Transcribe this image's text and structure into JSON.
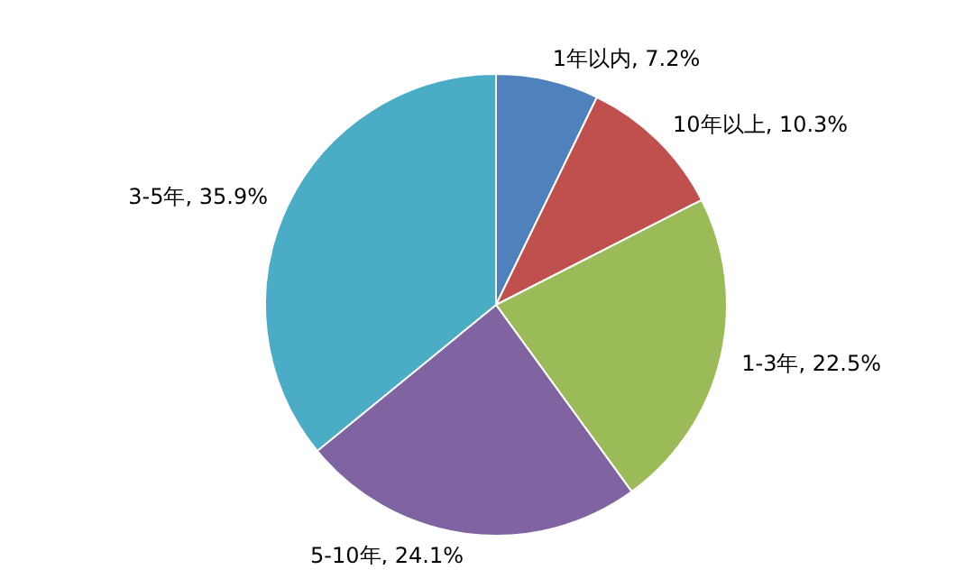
{
  "chart_data": {
    "type": "pie",
    "categories": [
      "1年以内",
      "10年以上",
      "1-3年",
      "5-10年",
      "3-5年"
    ],
    "values": [
      7.2,
      10.3,
      22.5,
      24.1,
      35.9
    ],
    "value_labels": [
      "7.2%",
      "10.3%",
      "22.5%",
      "24.1%",
      "35.9%"
    ],
    "colors": [
      "#4f81bd",
      "#c0504d",
      "#9bbb59",
      "#8064a2",
      "#4bacc6"
    ],
    "legend": false
  }
}
